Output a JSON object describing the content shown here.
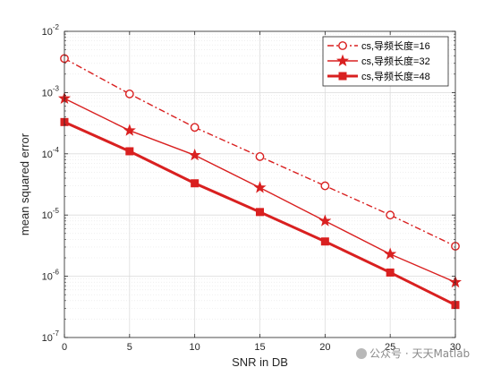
{
  "chart_data": {
    "type": "line",
    "xlabel": "SNR in DB",
    "ylabel": "mean squared error",
    "x": [
      0,
      5,
      10,
      15,
      20,
      25,
      30
    ],
    "xticks": [
      "0",
      "5",
      "10",
      "15",
      "20",
      "25",
      "30"
    ],
    "xlim": [
      0,
      30
    ],
    "yscale": "log",
    "ylim": [
      1e-07,
      0.01
    ],
    "yticks": [
      {
        "base": "10",
        "exp": "-7"
      },
      {
        "base": "10",
        "exp": "-6"
      },
      {
        "base": "10",
        "exp": "-5"
      },
      {
        "base": "10",
        "exp": "-4"
      },
      {
        "base": "10",
        "exp": "-3"
      },
      {
        "base": "10",
        "exp": "-2"
      }
    ],
    "grid": true,
    "legend_position": "top-right",
    "series": [
      {
        "name": "cs,导频长度=16",
        "values": [
          0.0036,
          0.00095,
          0.00027,
          9e-05,
          3e-05,
          1e-05,
          3.1e-06
        ],
        "color": "#d92020",
        "line": "dash-dot",
        "marker": "circle",
        "width": 1.4
      },
      {
        "name": "cs,导频长度=32",
        "values": [
          0.0008,
          0.00024,
          9.5e-05,
          2.8e-05,
          8e-06,
          2.3e-06,
          8e-07
        ],
        "color": "#d92020",
        "line": "solid",
        "marker": "star",
        "width": 1.4
      },
      {
        "name": "cs,导频长度=48",
        "values": [
          0.00033,
          0.00011,
          3.3e-05,
          1.12e-05,
          3.7e-06,
          1.15e-06,
          3.4e-07
        ],
        "color": "#d92020",
        "line": "solid",
        "marker": "square",
        "width": 3.0
      }
    ]
  },
  "watermark": "公众号 · 天天Matlab"
}
